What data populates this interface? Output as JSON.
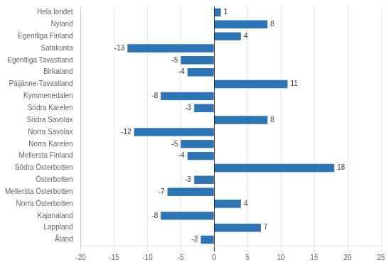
{
  "chart_data": {
    "type": "bar",
    "orientation": "horizontal",
    "categories": [
      "Hela landet",
      "Nyland",
      "Egentliga Finland",
      "Satakunta",
      "Egentliga Tavastland",
      "Birkaland",
      "Päijänne-Tavastland",
      "Kymmenedalen",
      "Södra Karelen",
      "Södra Savolax",
      "Norra Savolax",
      "Norra Karelen",
      "Mellersta Finland",
      "Södra Österbotten",
      "Österbotten",
      "Mellersta Österbotten",
      "Norra Österbotten",
      "Kajanaland",
      "Lappland",
      "Åland"
    ],
    "values": [
      1,
      8,
      4,
      -13,
      -5,
      -4,
      11,
      -8,
      -3,
      8,
      -12,
      -5,
      -4,
      18,
      -3,
      -7,
      4,
      -8,
      7,
      -2
    ],
    "color": "#2e75b6",
    "xlim": [
      -20,
      25
    ],
    "xticks": [
      -20,
      -15,
      -10,
      -5,
      0,
      5,
      10,
      15,
      20,
      25
    ],
    "grid": true,
    "data_labels": true
  }
}
